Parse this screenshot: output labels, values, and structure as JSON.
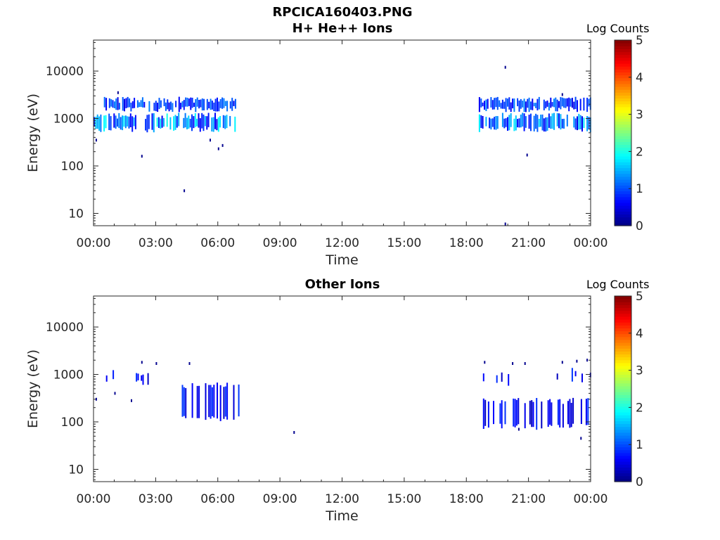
{
  "figure": {
    "title_line1": "RPCICA160403.PNG"
  },
  "colormap": "jet",
  "chart_data": [
    {
      "type": "heatmap",
      "title": "H+ He++ Ions",
      "xlabel": "Time",
      "ylabel": "Energy (eV)",
      "x_ticks": [
        "00:00",
        "03:00",
        "06:00",
        "09:00",
        "12:00",
        "15:00",
        "18:00",
        "21:00",
        "00:00"
      ],
      "x_range_hours": [
        0,
        24
      ],
      "y_scale": "log",
      "y_ticks": [
        10,
        100,
        1000,
        10000
      ],
      "y_tick_labels": [
        "10",
        "100",
        "1000",
        "10000"
      ],
      "y_range": [
        5.5,
        45000
      ],
      "colorbar": {
        "label": "Log Counts",
        "range": [
          0,
          5
        ],
        "ticks": [
          "0",
          "1",
          "2",
          "3",
          "4",
          "5"
        ]
      },
      "data_regions": [
        {
          "t_start_h": 0.0,
          "t_end_h": 6.85,
          "e_center": 800,
          "e_low": 600,
          "e_high": 1150,
          "log_counts_min": 0.5,
          "log_counts_max": 2.0
        },
        {
          "t_start_h": 0.5,
          "t_end_h": 6.85,
          "e_center": 2000,
          "e_low": 1600,
          "e_high": 2500,
          "log_counts_min": 0.5,
          "log_counts_max": 1.3
        },
        {
          "t_start_h": 18.6,
          "t_end_h": 24.0,
          "e_center": 800,
          "e_low": 600,
          "e_high": 1150,
          "log_counts_min": 0.5,
          "log_counts_max": 1.8
        },
        {
          "t_start_h": 18.6,
          "t_end_h": 24.0,
          "e_center": 2000,
          "e_low": 1600,
          "e_high": 2500,
          "log_counts_min": 0.5,
          "log_counts_max": 1.3
        }
      ],
      "isolated_points": [
        {
          "t_h": 1.15,
          "e": 3500
        },
        {
          "t_h": 2.3,
          "e": 160
        },
        {
          "t_h": 4.35,
          "e": 30
        },
        {
          "t_h": 5.6,
          "e": 350
        },
        {
          "t_h": 6.0,
          "e": 230
        },
        {
          "t_h": 6.2,
          "e": 270
        },
        {
          "t_h": 19.85,
          "e": 12000
        },
        {
          "t_h": 19.85,
          "e": 6
        },
        {
          "t_h": 20.9,
          "e": 170
        },
        {
          "t_h": 22.6,
          "e": 3200
        },
        {
          "t_h": 0.1,
          "e": 350
        }
      ]
    },
    {
      "type": "heatmap",
      "title": "Other Ions",
      "xlabel": "Time",
      "ylabel": "Energy (eV)",
      "x_ticks": [
        "00:00",
        "03:00",
        "06:00",
        "09:00",
        "12:00",
        "15:00",
        "18:00",
        "21:00",
        "00:00"
      ],
      "x_range_hours": [
        0,
        24
      ],
      "y_scale": "log",
      "y_ticks": [
        10,
        100,
        1000,
        10000
      ],
      "y_tick_labels": [
        "10",
        "100",
        "1000",
        "10000"
      ],
      "y_range": [
        5.5,
        45000
      ],
      "colorbar": {
        "label": "Log Counts",
        "range": [
          0,
          5
        ],
        "ticks": [
          "0",
          "1",
          "2",
          "3",
          "4",
          "5"
        ]
      },
      "data_regions": [
        {
          "t_start_h": 0.6,
          "t_end_h": 3.0,
          "e_center": 850,
          "e_low": 700,
          "e_high": 1100,
          "log_counts_min": 0.3,
          "log_counts_max": 0.9,
          "density": 0.25
        },
        {
          "t_start_h": 4.1,
          "t_end_h": 7.0,
          "e_center": 300,
          "e_low": 120,
          "e_high": 600,
          "log_counts_min": 0.3,
          "log_counts_max": 0.9,
          "density": 0.5
        },
        {
          "t_start_h": 18.8,
          "t_end_h": 20.0,
          "e_center": 800,
          "e_low": 650,
          "e_high": 1000,
          "log_counts_min": 0.3,
          "log_counts_max": 0.9,
          "density": 0.3
        },
        {
          "t_start_h": 18.8,
          "t_end_h": 24.0,
          "e_center": 170,
          "e_low": 80,
          "e_high": 280,
          "log_counts_min": 0.3,
          "log_counts_max": 1.0,
          "density": 0.5
        },
        {
          "t_start_h": 22.2,
          "t_end_h": 24.0,
          "e_center": 1000,
          "e_low": 800,
          "e_high": 1200,
          "log_counts_min": 0.3,
          "log_counts_max": 0.9,
          "density": 0.25
        }
      ],
      "isolated_points": [
        {
          "t_h": 0.1,
          "e": 300
        },
        {
          "t_h": 1.0,
          "e": 400
        },
        {
          "t_h": 1.8,
          "e": 280
        },
        {
          "t_h": 2.3,
          "e": 1800
        },
        {
          "t_h": 3.0,
          "e": 1700
        },
        {
          "t_h": 4.6,
          "e": 1700
        },
        {
          "t_h": 9.65,
          "e": 60
        },
        {
          "t_h": 18.85,
          "e": 1800
        },
        {
          "t_h": 20.2,
          "e": 1700
        },
        {
          "t_h": 20.8,
          "e": 1700
        },
        {
          "t_h": 22.6,
          "e": 1800
        },
        {
          "t_h": 23.3,
          "e": 1900
        },
        {
          "t_h": 23.8,
          "e": 2000
        },
        {
          "t_h": 23.5,
          "e": 45
        },
        {
          "t_h": 20.5,
          "e": 70
        }
      ]
    }
  ]
}
